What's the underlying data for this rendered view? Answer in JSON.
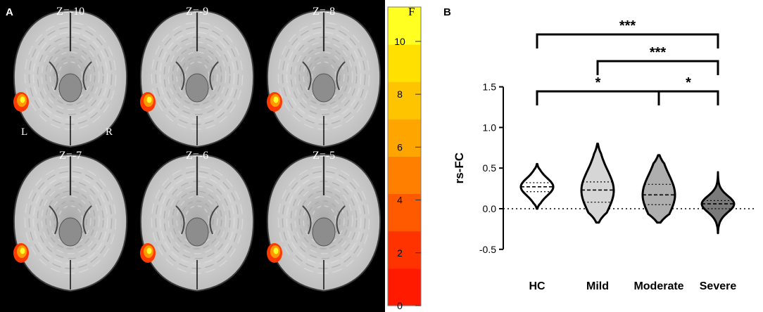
{
  "panel_a": {
    "label": "A",
    "slices": [
      {
        "z": "Z=-10",
        "blob_upper": true
      },
      {
        "z": "Z=-9",
        "blob_upper": true
      },
      {
        "z": "Z=-8",
        "blob_upper": true
      },
      {
        "z": "Z=-7",
        "blob_upper": false
      },
      {
        "z": "Z=-6",
        "blob_upper": false
      },
      {
        "z": "Z=-5",
        "blob_upper": false
      }
    ],
    "left_marker": "L",
    "right_marker": "R",
    "colorbar": {
      "title": "F",
      "ticks": [
        "0",
        "2",
        "4",
        "6",
        "8",
        "10"
      ],
      "min": 0,
      "max": 11.3,
      "colors": [
        "#ff1a00",
        "#ff3300",
        "#ff5a00",
        "#ff8000",
        "#ffa500",
        "#ffc400",
        "#ffe000",
        "#ffff22"
      ]
    }
  },
  "panel_b": {
    "label": "B",
    "significance": [
      {
        "from": "HC",
        "to": "Severe",
        "label": "***",
        "level": 1
      },
      {
        "from": "Mild",
        "to": "Severe",
        "label": "***",
        "level": 2
      },
      {
        "from": "HC",
        "to": "Moderate",
        "label": "*",
        "level": 3
      },
      {
        "from": "Moderate",
        "to": "Severe",
        "label": "*",
        "level": 3
      }
    ]
  },
  "chart_data": {
    "type": "violin",
    "title": "",
    "xlabel": "",
    "ylabel": "rs-FC",
    "ylim": [
      -0.5,
      1.5
    ],
    "yticks": [
      "-0.5",
      "0.0",
      "0.5",
      "1.0",
      "1.5"
    ],
    "categories": [
      "HC",
      "Mild",
      "Moderate",
      "Severe"
    ],
    "groups": [
      {
        "name": "HC",
        "min": 0.0,
        "max": 0.55,
        "q1": 0.21,
        "median": 0.27,
        "q3": 0.32,
        "fill": "#ffffff"
      },
      {
        "name": "Mild",
        "min": -0.17,
        "max": 0.8,
        "q1": 0.08,
        "median": 0.23,
        "q3": 0.33,
        "fill": "#d6d6d6"
      },
      {
        "name": "Moderate",
        "min": -0.17,
        "max": 0.66,
        "q1": 0.05,
        "median": 0.17,
        "q3": 0.3,
        "fill": "#aeaeae"
      },
      {
        "name": "Severe",
        "min": -0.3,
        "max": 0.45,
        "q1": 0.0,
        "median": 0.06,
        "q3": 0.1,
        "fill": "#7a7a7a"
      }
    ],
    "reference_line": 0.0
  }
}
